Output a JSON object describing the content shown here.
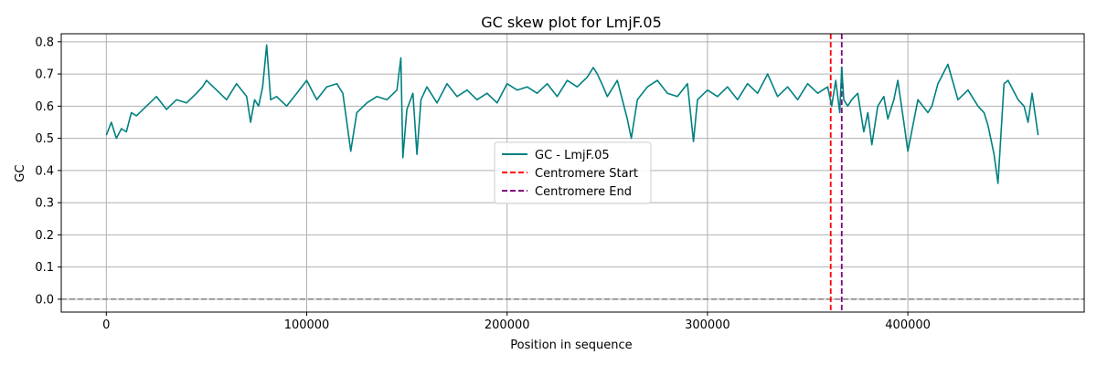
{
  "chart_data": {
    "type": "line",
    "title": "GC skew plot for LmjF.05",
    "xlabel": "Position in sequence",
    "ylabel": "GC",
    "xlim": [
      -22500,
      488000
    ],
    "ylim": [
      -0.04,
      0.825
    ],
    "x_ticks": [
      0,
      100000,
      200000,
      300000,
      400000
    ],
    "x_tick_labels": [
      "0",
      "100000",
      "200000",
      "300000",
      "400000"
    ],
    "y_ticks": [
      0.0,
      0.1,
      0.2,
      0.3,
      0.4,
      0.5,
      0.6,
      0.7,
      0.8
    ],
    "y_tick_labels": [
      "0.0",
      "0.1",
      "0.2",
      "0.3",
      "0.4",
      "0.5",
      "0.6",
      "0.7",
      "0.8"
    ],
    "grid": true,
    "legend_position": "center",
    "colors": {
      "series": "#008080",
      "centromere_start": "#ff0000",
      "centromere_end": "#800080",
      "zero_line": "#808080",
      "grid": "#b0b0b0"
    },
    "series": [
      {
        "name": "GC - LmjF.05",
        "x": [
          0,
          2500,
          5000,
          7500,
          10000,
          12500,
          15000,
          20000,
          25000,
          30000,
          35000,
          40000,
          45000,
          48000,
          50000,
          55000,
          60000,
          65000,
          70000,
          72000,
          74000,
          76000,
          78000,
          80000,
          82000,
          85000,
          90000,
          95000,
          100000,
          105000,
          110000,
          115000,
          118000,
          120000,
          122000,
          125000,
          130000,
          135000,
          140000,
          145000,
          147000,
          148000,
          150000,
          153000,
          155000,
          157000,
          160000,
          165000,
          170000,
          175000,
          180000,
          185000,
          190000,
          195000,
          200000,
          205000,
          210000,
          215000,
          220000,
          225000,
          230000,
          235000,
          240000,
          243000,
          245000,
          248000,
          250000,
          255000,
          260000,
          262000,
          265000,
          270000,
          275000,
          280000,
          285000,
          290000,
          293000,
          295000,
          300000,
          305000,
          310000,
          315000,
          320000,
          325000,
          330000,
          335000,
          340000,
          345000,
          350000,
          355000,
          360000,
          362000,
          364000,
          366000,
          367000,
          368000,
          370000,
          372000,
          375000,
          378000,
          380000,
          382000,
          385000,
          388000,
          390000,
          393000,
          395000,
          398000,
          400000,
          405000,
          410000,
          412000,
          415000,
          420000,
          425000,
          430000,
          435000,
          438000,
          440000,
          442000,
          443000,
          445000,
          448000,
          450000,
          455000,
          458000,
          460000,
          462000,
          465000
        ],
        "values": [
          0.51,
          0.55,
          0.5,
          0.53,
          0.52,
          0.58,
          0.57,
          0.6,
          0.63,
          0.59,
          0.62,
          0.61,
          0.64,
          0.66,
          0.68,
          0.65,
          0.62,
          0.67,
          0.63,
          0.55,
          0.62,
          0.6,
          0.66,
          0.79,
          0.62,
          0.63,
          0.6,
          0.64,
          0.68,
          0.62,
          0.66,
          0.67,
          0.64,
          0.55,
          0.46,
          0.58,
          0.61,
          0.63,
          0.62,
          0.65,
          0.75,
          0.44,
          0.59,
          0.64,
          0.45,
          0.62,
          0.66,
          0.61,
          0.67,
          0.63,
          0.65,
          0.62,
          0.64,
          0.61,
          0.67,
          0.65,
          0.66,
          0.64,
          0.67,
          0.63,
          0.68,
          0.66,
          0.69,
          0.72,
          0.7,
          0.66,
          0.63,
          0.68,
          0.56,
          0.5,
          0.62,
          0.66,
          0.68,
          0.64,
          0.63,
          0.67,
          0.49,
          0.62,
          0.65,
          0.63,
          0.66,
          0.62,
          0.67,
          0.64,
          0.7,
          0.63,
          0.66,
          0.62,
          0.67,
          0.64,
          0.66,
          0.6,
          0.68,
          0.58,
          0.72,
          0.62,
          0.6,
          0.62,
          0.64,
          0.52,
          0.58,
          0.48,
          0.6,
          0.63,
          0.56,
          0.62,
          0.68,
          0.55,
          0.46,
          0.62,
          0.58,
          0.6,
          0.67,
          0.73,
          0.62,
          0.65,
          0.6,
          0.58,
          0.54,
          0.48,
          0.45,
          0.36,
          0.67,
          0.68,
          0.62,
          0.6,
          0.55,
          0.64,
          0.51
        ]
      }
    ],
    "vlines": [
      {
        "name": "Centromere Start",
        "x": 361500
      },
      {
        "name": "Centromere End",
        "x": 367000
      }
    ],
    "hlines": [
      {
        "y": 0.0
      }
    ]
  }
}
